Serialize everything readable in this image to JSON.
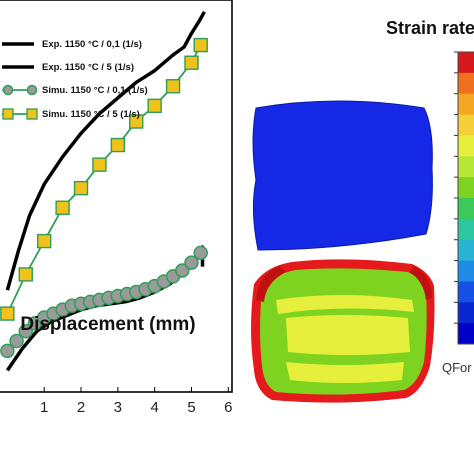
{
  "chart_data": {
    "type": "line",
    "xlabel": "Displacement (mm)",
    "x_ticks": [
      "1",
      "2",
      "3",
      "4",
      "5",
      "6"
    ],
    "xlim": [
      -0.2,
      6.1
    ],
    "ylim": [
      0,
      1
    ],
    "grid": false,
    "legend_position": "top-left",
    "series": [
      {
        "name": "Exp. 1150 °C / 0,1 (1/s)",
        "style": "line",
        "color": "#000000",
        "x": [
          0.0,
          0.4,
          0.8,
          1.2,
          1.6,
          2.0,
          2.4,
          2.8,
          3.2,
          3.6,
          4.0,
          4.4,
          4.8,
          5.0,
          5.2,
          5.3,
          5.3
        ],
        "y": [
          0.055,
          0.11,
          0.155,
          0.18,
          0.195,
          0.21,
          0.22,
          0.225,
          0.23,
          0.24,
          0.255,
          0.275,
          0.305,
          0.33,
          0.355,
          0.37,
          0.32
        ]
      },
      {
        "name": "Exp. 1150 °C / 5 (1/s)",
        "style": "line",
        "color": "#000000",
        "x": [
          0.0,
          0.3,
          0.6,
          1.0,
          1.5,
          2.0,
          2.5,
          3.0,
          3.5,
          4.0,
          4.5,
          4.8,
          5.0,
          5.2,
          5.35
        ],
        "y": [
          0.26,
          0.36,
          0.45,
          0.53,
          0.6,
          0.66,
          0.71,
          0.75,
          0.79,
          0.82,
          0.86,
          0.88,
          0.915,
          0.945,
          0.97
        ]
      },
      {
        "name": "Simu. 1150 °C / 0,1 (1/s)",
        "style": "line+marker",
        "marker": "circle",
        "color": "#2e9e5a",
        "marker_fill": "#9a9a9a",
        "x": [
          0.0,
          0.25,
          0.5,
          0.75,
          1.0,
          1.25,
          1.5,
          1.75,
          2.0,
          2.25,
          2.5,
          2.75,
          3.0,
          3.25,
          3.5,
          3.75,
          4.0,
          4.25,
          4.5,
          4.75,
          5.0,
          5.25
        ],
        "y": [
          0.105,
          0.13,
          0.155,
          0.175,
          0.19,
          0.2,
          0.21,
          0.22,
          0.225,
          0.23,
          0.235,
          0.24,
          0.245,
          0.25,
          0.255,
          0.262,
          0.27,
          0.282,
          0.295,
          0.31,
          0.33,
          0.355
        ]
      },
      {
        "name": "Simu. 1150 °C / 5 (1/s)",
        "style": "line+marker",
        "marker": "square",
        "color": "#2e9e5a",
        "marker_fill": "#f0c21a",
        "x": [
          0.0,
          0.5,
          1.0,
          1.5,
          2.0,
          2.5,
          3.0,
          3.5,
          4.0,
          4.5,
          5.0,
          5.25
        ],
        "y": [
          0.2,
          0.3,
          0.385,
          0.47,
          0.52,
          0.58,
          0.63,
          0.69,
          0.73,
          0.78,
          0.84,
          0.885
        ]
      }
    ]
  },
  "contour_panel": {
    "title": "Strain rate",
    "software_label": "QFor",
    "scale_colors": [
      "#d7191c",
      "#f07020",
      "#f5a623",
      "#f5d03a",
      "#e6f03c",
      "#b8e636",
      "#7ed321",
      "#3cc85a",
      "#2ec6a0",
      "#28b4d2",
      "#1e8ce6",
      "#1450e6",
      "#0a28d2",
      "#0000c8"
    ],
    "top_specimen_color": "#1428e6",
    "bottom_specimen_colors": [
      "#e41a1c",
      "#7ed321",
      "#e6f03c"
    ]
  }
}
